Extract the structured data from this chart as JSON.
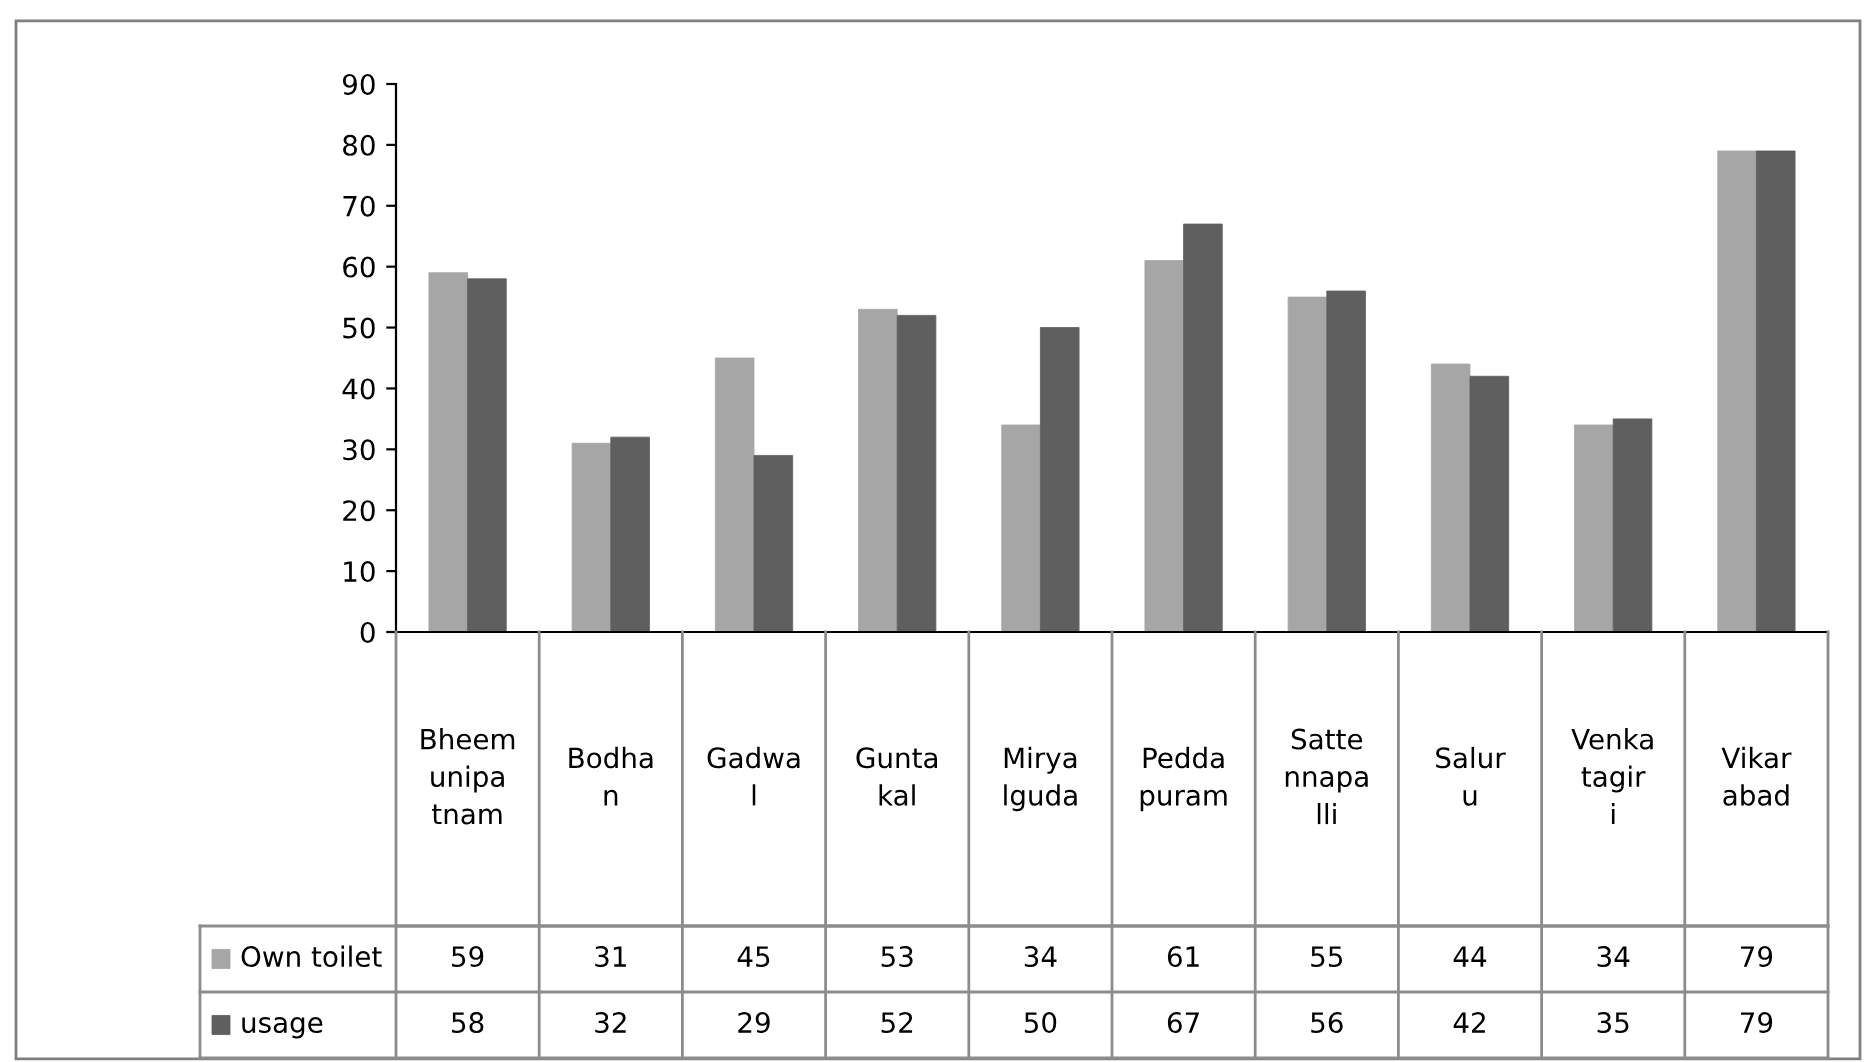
{
  "chart_data": {
    "type": "bar",
    "categories": [
      "Bheemunipatnam",
      "Bodhan",
      "Gadwal",
      "Guntakal",
      "Miryalguda",
      "Peddapuram",
      "Sattennapalli",
      "Saluru",
      "Venkatagiri",
      "Vikarabad"
    ],
    "series": [
      {
        "name": "Own toilet",
        "color": "#a6a6a6",
        "values": [
          59,
          31,
          45,
          53,
          34,
          61,
          55,
          44,
          34,
          79
        ]
      },
      {
        "name": "usage",
        "color": "#5f5f5f",
        "values": [
          58,
          32,
          29,
          52,
          50,
          67,
          56,
          42,
          35,
          79
        ]
      }
    ],
    "ylim": [
      0,
      90
    ],
    "yticks": [
      0,
      10,
      20,
      30,
      40,
      50,
      60,
      70,
      80,
      90
    ],
    "grid": false,
    "legend": "bottom left",
    "data_labels": true
  }
}
